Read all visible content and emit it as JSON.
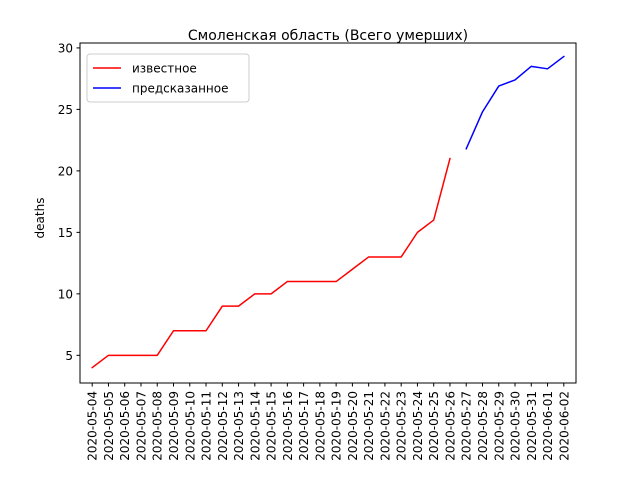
{
  "chart_data": {
    "type": "line",
    "title": "Смоленская область (Всего умерших)",
    "xlabel": "",
    "ylabel": "deaths",
    "ylim": [
      2.75,
      30.4
    ],
    "yticks": [
      5,
      10,
      15,
      20,
      25,
      30
    ],
    "legend_position": "top-left",
    "grid": false,
    "x": [
      "2020-05-04",
      "2020-05-05",
      "2020-05-06",
      "2020-05-07",
      "2020-05-08",
      "2020-05-09",
      "2020-05-10",
      "2020-05-11",
      "2020-05-12",
      "2020-05-13",
      "2020-05-14",
      "2020-05-15",
      "2020-05-16",
      "2020-05-17",
      "2020-05-18",
      "2020-05-19",
      "2020-05-20",
      "2020-05-21",
      "2020-05-22",
      "2020-05-23",
      "2020-05-24",
      "2020-05-25",
      "2020-05-26",
      "2020-05-27",
      "2020-05-28",
      "2020-05-29",
      "2020-05-30",
      "2020-05-31",
      "2020-06-01",
      "2020-06-02"
    ],
    "series": [
      {
        "name": "известное",
        "color": "#ff0000",
        "x": [
          "2020-05-04",
          "2020-05-05",
          "2020-05-06",
          "2020-05-07",
          "2020-05-08",
          "2020-05-09",
          "2020-05-10",
          "2020-05-11",
          "2020-05-12",
          "2020-05-13",
          "2020-05-14",
          "2020-05-15",
          "2020-05-16",
          "2020-05-17",
          "2020-05-18",
          "2020-05-19",
          "2020-05-20",
          "2020-05-21",
          "2020-05-22",
          "2020-05-23",
          "2020-05-24",
          "2020-05-25",
          "2020-05-26"
        ],
        "values": [
          4,
          5,
          5,
          5,
          5,
          7,
          7,
          7,
          9,
          9,
          10,
          10,
          11,
          11,
          11,
          11,
          12,
          13,
          13,
          13,
          15,
          16,
          21
        ]
      },
      {
        "name": "предсказанное",
        "color": "#0000ff",
        "x": [
          "2020-05-27",
          "2020-05-28",
          "2020-05-29",
          "2020-05-30",
          "2020-05-31",
          "2020-06-01",
          "2020-06-02"
        ],
        "values": [
          21.8,
          24.8,
          26.9,
          27.4,
          28.5,
          28.3,
          29.3
        ]
      }
    ]
  }
}
